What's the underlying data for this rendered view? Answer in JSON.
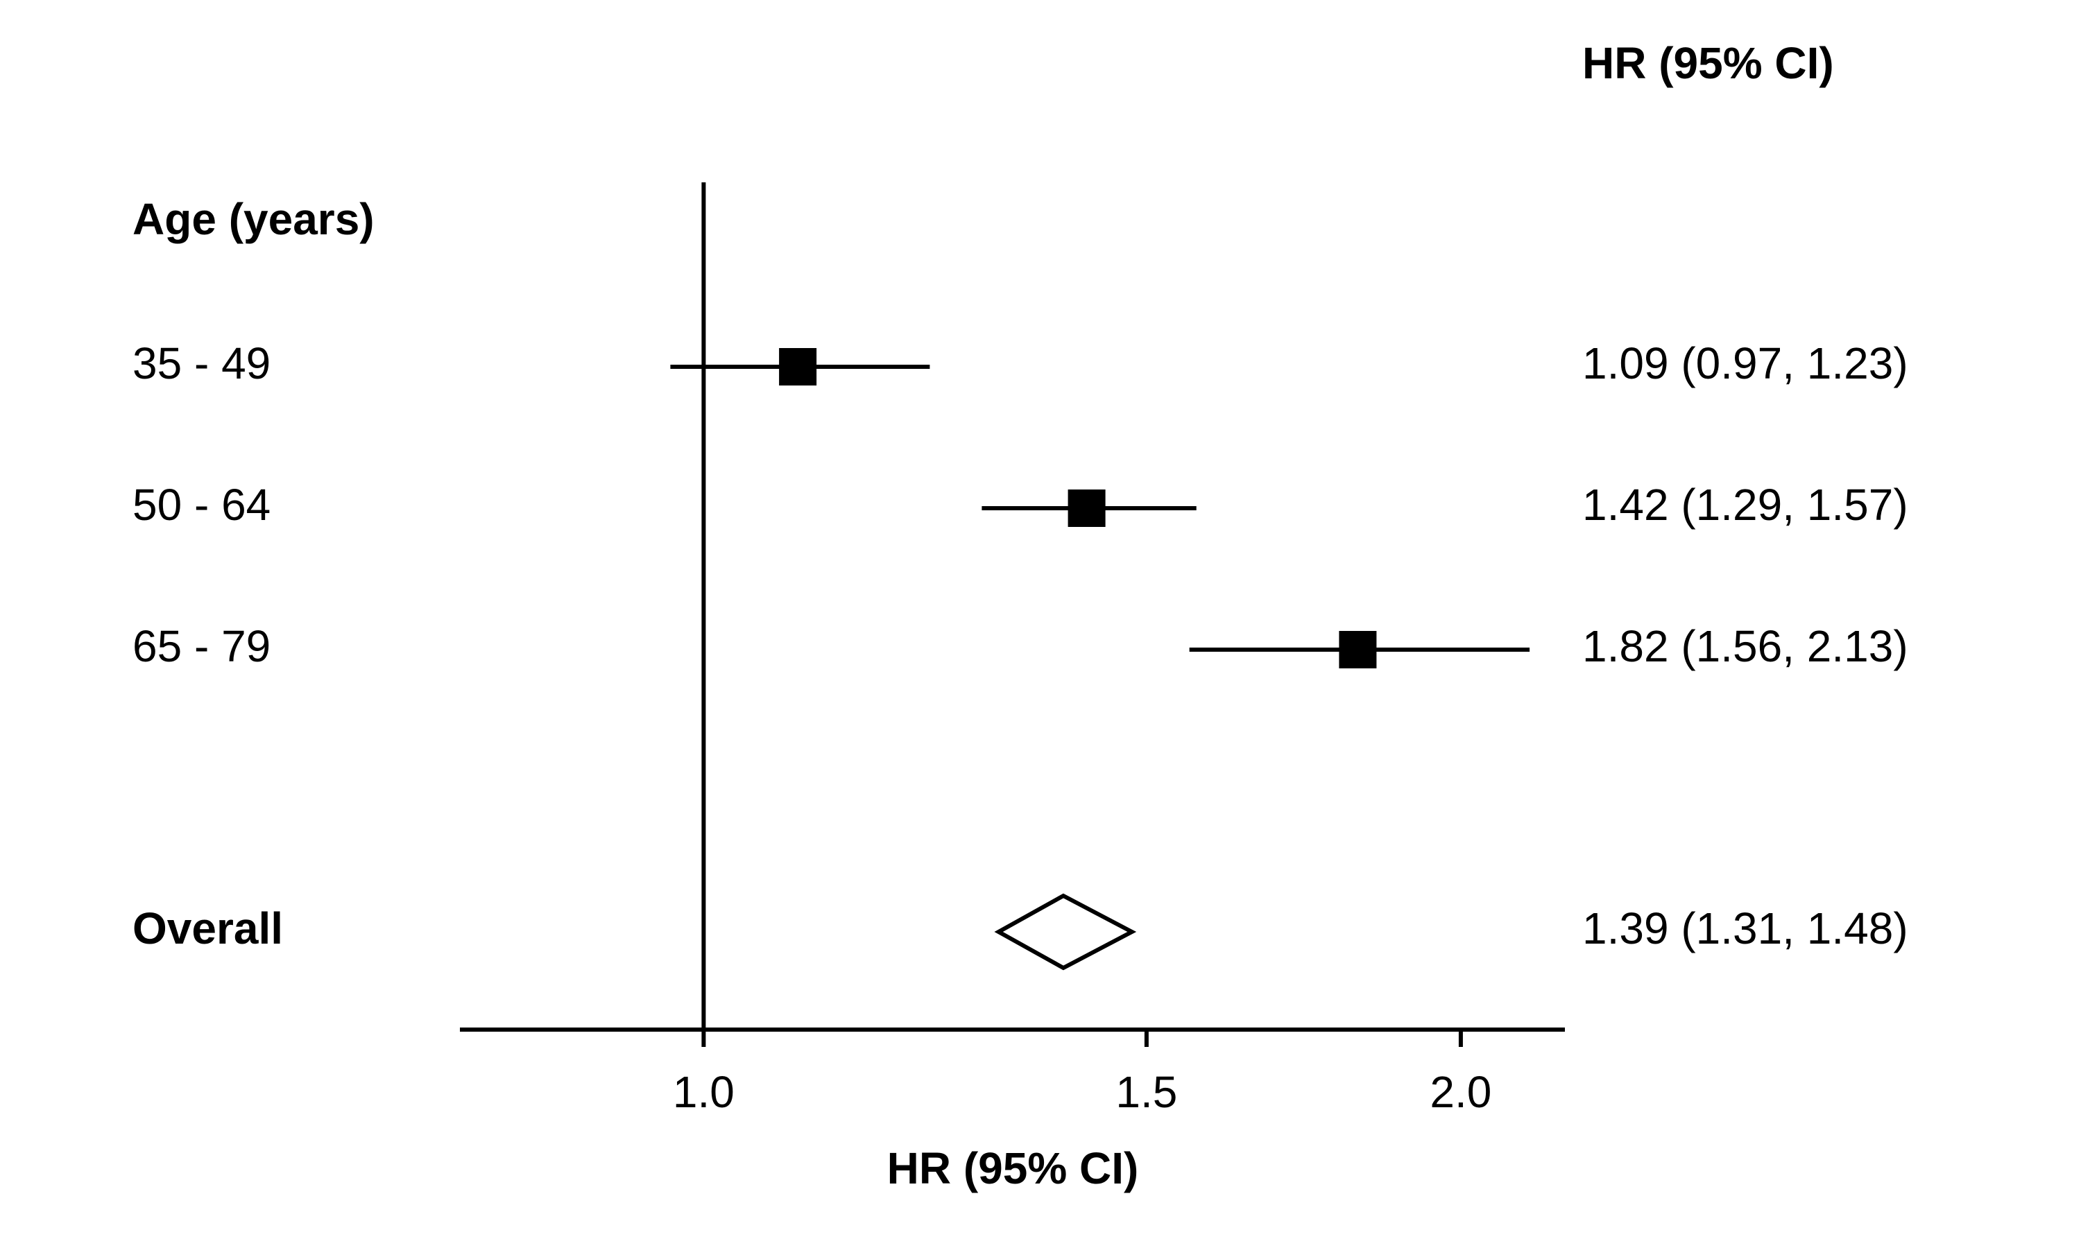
{
  "chart_data": {
    "type": "forest",
    "column_header": "HR (95% CI)",
    "group_label": "Age (years)",
    "categories": [
      "35 - 49",
      "50 - 64",
      "65 - 79"
    ],
    "values": [
      1.09,
      1.42,
      1.82
    ],
    "lower": [
      0.97,
      1.29,
      1.56
    ],
    "upper": [
      1.23,
      1.57,
      2.13
    ],
    "value_labels": [
      "1.09 (0.97, 1.23)",
      "1.42 (1.29, 1.57)",
      "1.82 (1.56, 2.13)"
    ],
    "overall": {
      "label": "Overall",
      "value": 1.39,
      "lower": 1.31,
      "upper": 1.48,
      "value_label": "1.39 (1.31, 1.48)"
    },
    "reference_line": 1,
    "xlabel": "HR (95% CI)",
    "xscale": "log",
    "xlim": [
      0.8,
      2.2
    ],
    "xticks": [
      {
        "value": 1,
        "label": "1.0"
      },
      1.5,
      {
        "value": 2,
        "label": "2.0"
      }
    ],
    "color": "#000000"
  }
}
